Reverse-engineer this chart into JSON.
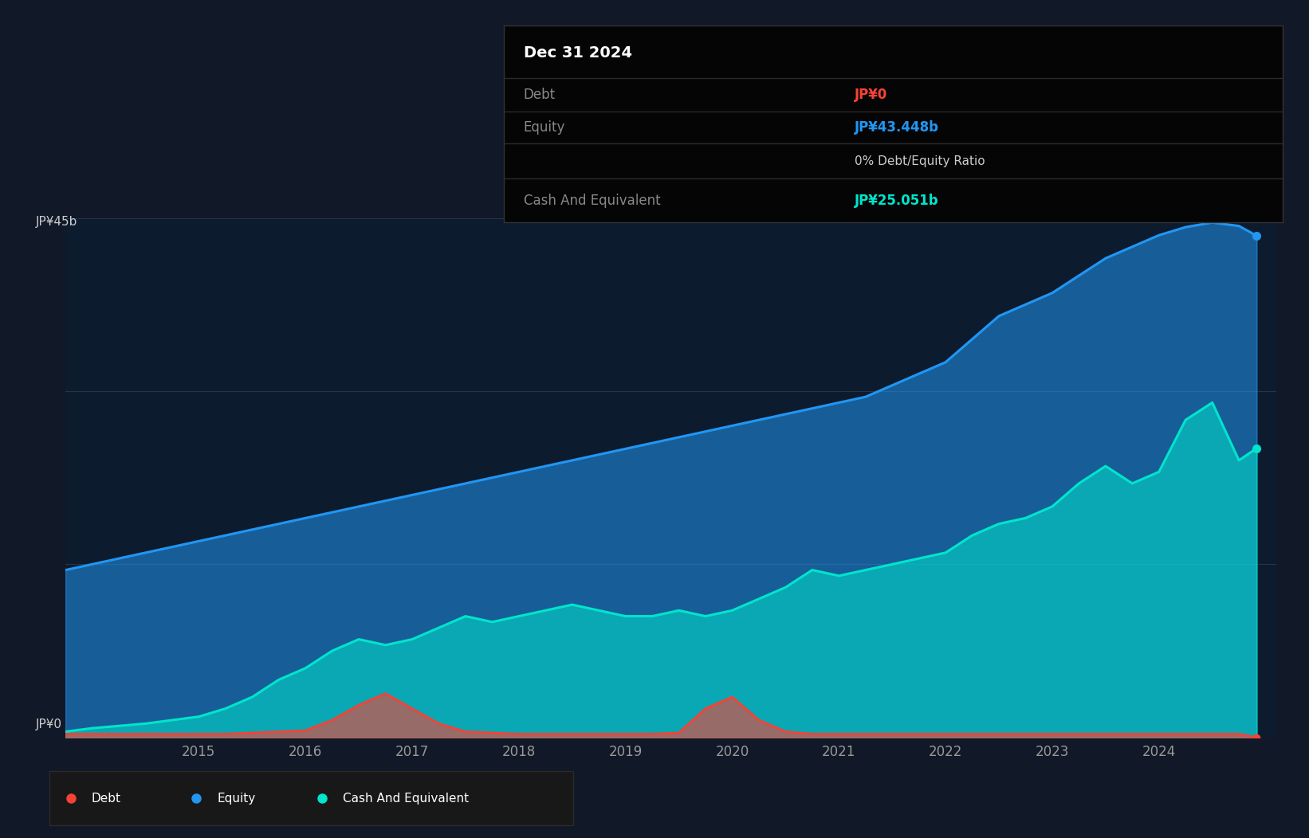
{
  "background_color": "#111827",
  "plot_bg_color": "#0d1b2e",
  "y_label_top": "JP¥45b",
  "y_label_bottom": "JP¥0",
  "x_ticks": [
    "2015",
    "2016",
    "2017",
    "2018",
    "2019",
    "2020",
    "2021",
    "2022",
    "2023",
    "2024"
  ],
  "equity_color": "#2196f3",
  "cash_color": "#00e5cc",
  "debt_color": "#f44336",
  "tooltip_bg": "#050505",
  "tooltip_border": "#2a2a2a",
  "tooltip_title": "Dec 31 2024",
  "tooltip_debt_label": "Debt",
  "tooltip_debt_value": "JP¥0",
  "tooltip_debt_color": "#f44336",
  "tooltip_equity_label": "Equity",
  "tooltip_equity_value": "JP¥43.448b",
  "tooltip_equity_color": "#2196f3",
  "tooltip_ratio": "0% Debt/Equity Ratio",
  "tooltip_ratio_color": "#cccccc",
  "tooltip_cash_label": "Cash And Equivalent",
  "tooltip_cash_value": "JP¥25.051b",
  "tooltip_cash_color": "#00e5cc",
  "ylim": [
    0,
    45
  ],
  "equity_x": [
    2013.75,
    2014.0,
    2014.25,
    2014.5,
    2014.75,
    2015.0,
    2015.25,
    2015.5,
    2015.75,
    2016.0,
    2016.25,
    2016.5,
    2016.75,
    2017.0,
    2017.25,
    2017.5,
    2017.75,
    2018.0,
    2018.25,
    2018.5,
    2018.75,
    2019.0,
    2019.25,
    2019.5,
    2019.75,
    2020.0,
    2020.25,
    2020.5,
    2020.75,
    2021.0,
    2021.25,
    2021.5,
    2021.75,
    2022.0,
    2022.25,
    2022.5,
    2022.75,
    2023.0,
    2023.25,
    2023.5,
    2023.75,
    2024.0,
    2024.25,
    2024.5,
    2024.75,
    2024.917
  ],
  "equity_y": [
    14.5,
    15.0,
    15.5,
    16.0,
    16.5,
    17.0,
    17.5,
    18.0,
    18.5,
    19.0,
    19.5,
    20.0,
    20.5,
    21.0,
    21.5,
    22.0,
    22.5,
    23.0,
    23.5,
    24.0,
    24.5,
    25.0,
    25.5,
    26.0,
    26.5,
    27.0,
    27.5,
    28.0,
    28.5,
    29.0,
    29.5,
    30.5,
    31.5,
    32.5,
    34.5,
    36.5,
    37.5,
    38.5,
    40.0,
    41.5,
    42.5,
    43.5,
    44.2,
    44.6,
    44.3,
    43.448
  ],
  "cash_x": [
    2013.75,
    2014.0,
    2014.25,
    2014.5,
    2014.75,
    2015.0,
    2015.25,
    2015.5,
    2015.75,
    2016.0,
    2016.25,
    2016.5,
    2016.75,
    2017.0,
    2017.25,
    2017.5,
    2017.75,
    2018.0,
    2018.25,
    2018.5,
    2018.75,
    2019.0,
    2019.25,
    2019.5,
    2019.75,
    2020.0,
    2020.25,
    2020.5,
    2020.75,
    2021.0,
    2021.25,
    2021.5,
    2021.75,
    2022.0,
    2022.25,
    2022.5,
    2022.75,
    2023.0,
    2023.25,
    2023.5,
    2023.75,
    2024.0,
    2024.25,
    2024.5,
    2024.75,
    2024.917
  ],
  "cash_y": [
    0.5,
    0.8,
    1.0,
    1.2,
    1.5,
    1.8,
    2.5,
    3.5,
    5.0,
    6.0,
    7.5,
    8.5,
    8.0,
    8.5,
    9.5,
    10.5,
    10.0,
    10.5,
    11.0,
    11.5,
    11.0,
    10.5,
    10.5,
    11.0,
    10.5,
    11.0,
    12.0,
    13.0,
    14.5,
    14.0,
    14.5,
    15.0,
    15.5,
    16.0,
    17.5,
    18.5,
    19.0,
    20.0,
    22.0,
    23.5,
    22.0,
    23.0,
    27.5,
    29.0,
    24.0,
    25.051
  ],
  "debt_x": [
    2013.75,
    2014.0,
    2014.25,
    2014.5,
    2014.75,
    2015.0,
    2015.25,
    2015.5,
    2015.75,
    2016.0,
    2016.25,
    2016.5,
    2016.75,
    2017.0,
    2017.25,
    2017.5,
    2017.75,
    2018.0,
    2018.25,
    2018.5,
    2018.75,
    2019.0,
    2019.25,
    2019.5,
    2019.75,
    2020.0,
    2020.25,
    2020.5,
    2020.75,
    2021.0,
    2021.25,
    2021.5,
    2021.75,
    2022.0,
    2022.25,
    2022.5,
    2022.75,
    2023.0,
    2023.25,
    2023.5,
    2023.75,
    2024.0,
    2024.25,
    2024.5,
    2024.75,
    2024.917
  ],
  "debt_y": [
    0.3,
    0.3,
    0.3,
    0.3,
    0.3,
    0.3,
    0.3,
    0.4,
    0.5,
    0.6,
    1.5,
    2.8,
    3.8,
    2.5,
    1.2,
    0.5,
    0.4,
    0.3,
    0.3,
    0.3,
    0.3,
    0.3,
    0.3,
    0.4,
    2.5,
    3.5,
    1.5,
    0.5,
    0.3,
    0.3,
    0.3,
    0.3,
    0.3,
    0.3,
    0.3,
    0.3,
    0.3,
    0.3,
    0.3,
    0.3,
    0.3,
    0.3,
    0.3,
    0.3,
    0.3,
    0.0
  ]
}
